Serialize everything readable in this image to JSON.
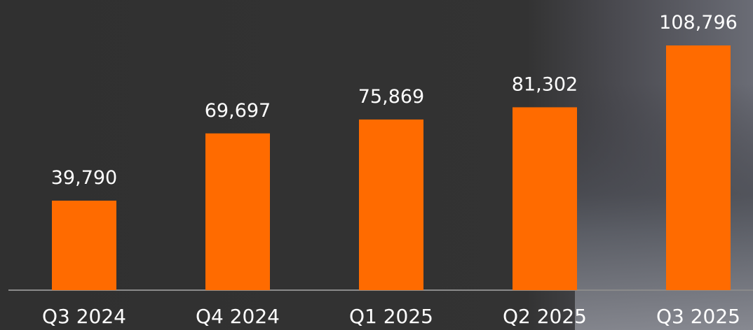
{
  "chart_data": {
    "type": "bar",
    "categories": [
      "Q3 2024",
      "Q4 2024",
      "Q1 2025",
      "Q2 2025",
      "Q3 2025"
    ],
    "values": [
      39790,
      69697,
      75869,
      81302,
      108796
    ],
    "value_labels": [
      "39,790",
      "69,697",
      "75,869",
      "81,302",
      "108,796"
    ],
    "color": "#ff6b00"
  }
}
